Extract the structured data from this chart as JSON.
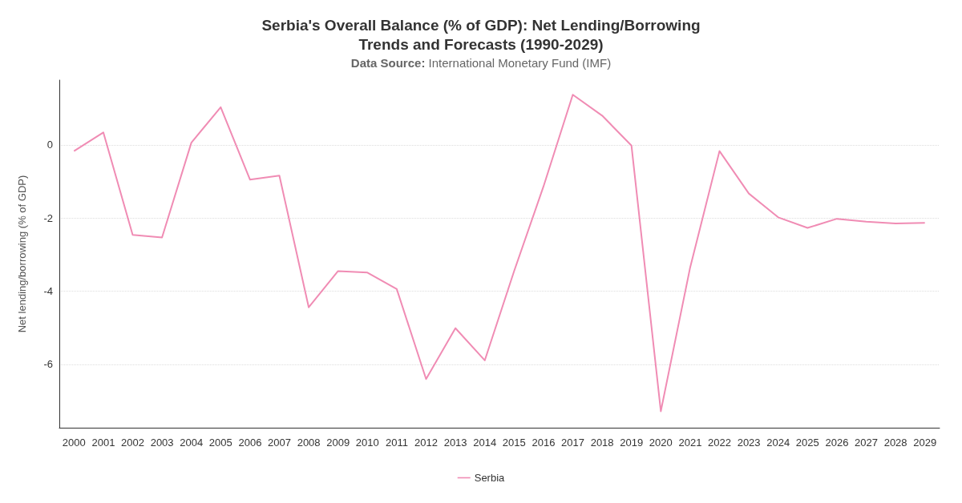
{
  "chart_data": {
    "type": "line",
    "title": "Serbia's Overall Balance (% of GDP): Net Lending/Borrowing\nTrends and Forecasts (1990-2029)",
    "subtitle": "Data Source: International Monetary Fund (IMF)",
    "ylabel": "Net lending/borrowing (% of GDP)",
    "categories": [
      "2000",
      "2001",
      "2002",
      "2003",
      "2004",
      "2005",
      "2006",
      "2007",
      "2008",
      "2009",
      "2010",
      "2011",
      "2012",
      "2013",
      "2014",
      "2015",
      "2016",
      "2017",
      "2018",
      "2019",
      "2020",
      "2021",
      "2022",
      "2023",
      "2024",
      "2025",
      "2026",
      "2027",
      "2028",
      "2029"
    ],
    "series": [
      {
        "name": "Serbia",
        "color": "#f08cb4",
        "values": [
          -0.17,
          0.34,
          -2.46,
          -2.53,
          0.06,
          1.03,
          -0.95,
          -0.84,
          -4.44,
          -3.45,
          -3.49,
          -3.94,
          -6.4,
          -5.01,
          -5.89,
          -3.45,
          -1.14,
          1.37,
          0.8,
          -0.02,
          -7.28,
          -3.35,
          -0.17,
          -1.33,
          -1.98,
          -2.27,
          -2.02,
          -2.1,
          -2.15,
          -2.13
        ]
      }
    ],
    "ylim": [
      -7.73,
      1.77
    ],
    "yticks": [
      0,
      -2,
      -4,
      -6
    ],
    "grid": "y",
    "legend": "bottom",
    "marker": "none",
    "line_style": "solid"
  }
}
